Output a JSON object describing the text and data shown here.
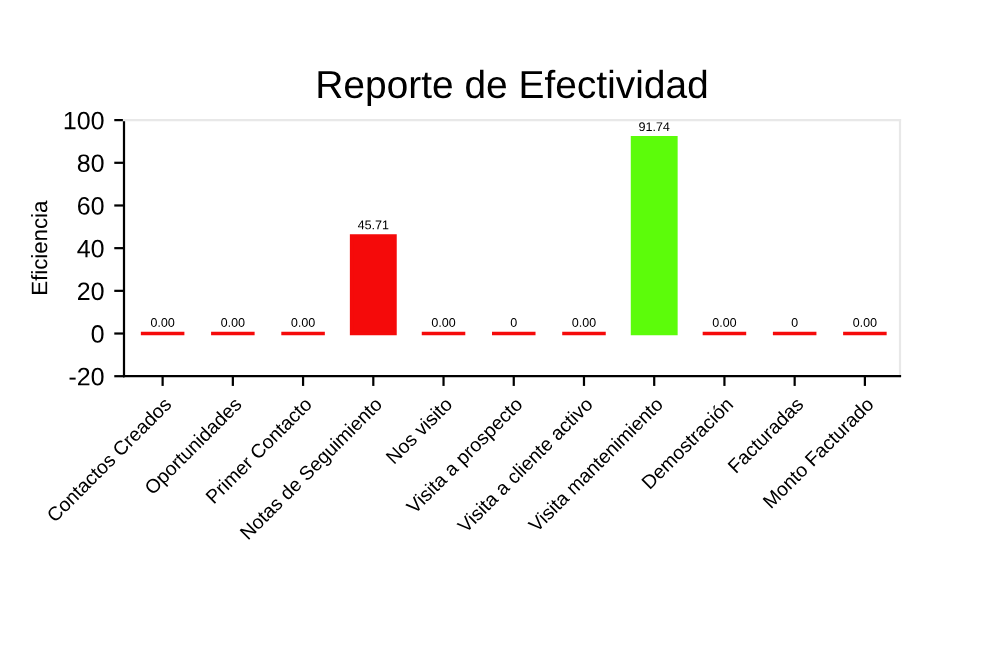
{
  "chart_data": {
    "type": "bar",
    "title": "Reporte de Efectividad",
    "ylabel": "Eficiencia",
    "categories": [
      "Contactos Creados",
      "Oportunidades",
      "Primer Contacto",
      "Notas de Seguimiento",
      "Nos visito",
      "Visita a prospecto",
      "Visita a cliente activo",
      "Visita mantenimiento",
      "Demostración",
      "Facturadas",
      "Monto Facturado"
    ],
    "values": [
      0,
      0,
      0,
      45.71,
      0,
      0,
      0,
      91.74,
      0,
      0,
      0
    ],
    "colors": [
      "#f50a0a",
      "#f50a0a",
      "#f50a0a",
      "#f50a0a",
      "#f50a0a",
      "#f50a0a",
      "#f50a0a",
      "#5cfc0a",
      "#f50a0a",
      "#f50a0a",
      "#f50a0a"
    ],
    "value_labels": [
      "0.00",
      "0.00",
      "0.00",
      "45.71",
      "0.00",
      "0",
      "0.00",
      "91.74",
      "0.00",
      "0",
      "0.00"
    ],
    "ylim": [
      -20,
      100
    ],
    "yticks": [
      -20,
      0,
      20,
      40,
      60,
      80,
      100
    ],
    "grid": false
  }
}
